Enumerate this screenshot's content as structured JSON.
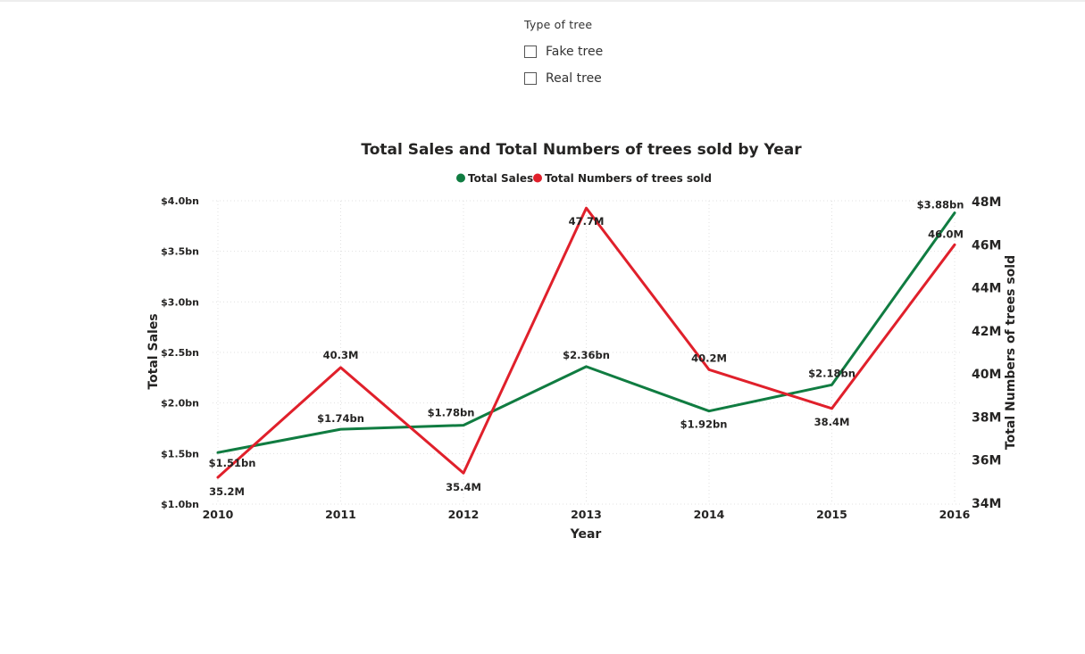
{
  "slicer": {
    "title": "Type of tree",
    "options": [
      {
        "label": "Fake tree",
        "checked": false
      },
      {
        "label": "Real tree",
        "checked": false
      }
    ]
  },
  "chart_data": {
    "type": "line",
    "title": "Total Sales and Total Numbers of trees sold by Year",
    "xlabel": "Year",
    "ylabel": "Total Sales",
    "y2label": "Total Numbers of trees sold",
    "legend_position": "top-center",
    "grid": true,
    "categories": [
      "2010",
      "2011",
      "2012",
      "2013",
      "2014",
      "2015",
      "2016"
    ],
    "ylim": [
      1.0,
      4.0
    ],
    "yticks": [
      "$1.0bn",
      "$1.5bn",
      "$2.0bn",
      "$2.5bn",
      "$3.0bn",
      "$3.5bn",
      "$4.0bn"
    ],
    "y2lim": [
      34,
      48
    ],
    "y2ticks": [
      "34M",
      "36M",
      "38M",
      "40M",
      "42M",
      "44M",
      "46M",
      "48M"
    ],
    "series": [
      {
        "name": "Total Sales",
        "axis": "left",
        "color": "#107c41",
        "values": [
          1.51,
          1.74,
          1.78,
          2.36,
          1.92,
          2.18,
          3.88
        ],
        "labels": [
          "$1.51bn",
          "$1.74bn",
          "$1.78bn",
          "$2.36bn",
          "$1.92bn",
          "$2.18bn",
          "$3.88bn"
        ]
      },
      {
        "name": "Total Numbers of trees sold",
        "axis": "right",
        "color": "#e0202b",
        "values": [
          35.2,
          40.3,
          35.4,
          47.7,
          40.2,
          38.4,
          46.0
        ],
        "labels": [
          "35.2M",
          "40.3M",
          "35.4M",
          "47.7M",
          "40.2M",
          "38.4M",
          "46.0M"
        ]
      }
    ]
  }
}
